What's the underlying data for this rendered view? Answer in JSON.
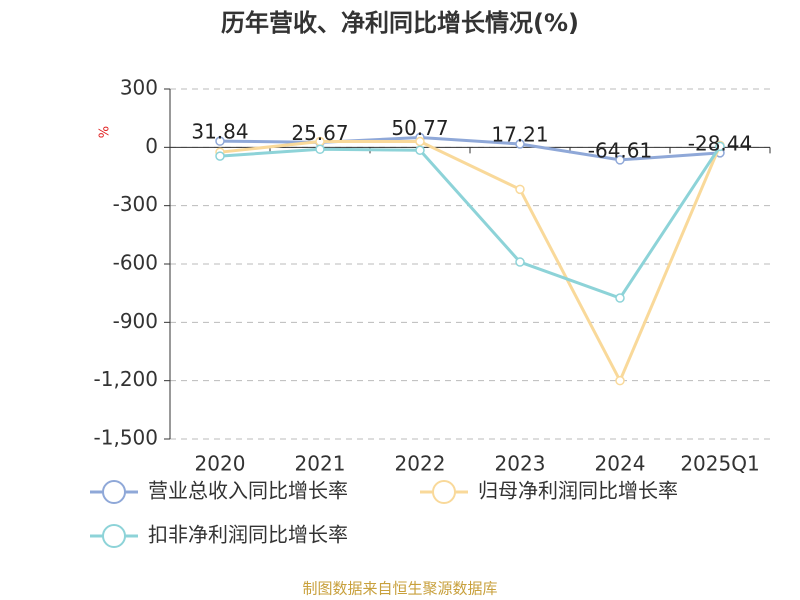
{
  "chart_data": {
    "type": "line",
    "title": "历年营收、净利同比增长情况(%)",
    "y_unit": "%",
    "categories": [
      "2020",
      "2021",
      "2022",
      "2023",
      "2024",
      "2025Q1"
    ],
    "series": [
      {
        "name": "营业总收入同比增长率",
        "color": "#8fa8d8",
        "values": [
          31.84,
          25.67,
          50.77,
          17.21,
          -64.61,
          -28.44
        ],
        "data_labels": true
      },
      {
        "name": "归母净利润同比增长率",
        "color": "#f9d99a",
        "values": [
          -25,
          30,
          30,
          -216,
          -1200,
          10
        ],
        "data_labels": false
      },
      {
        "name": "扣非净利润同比增长率",
        "color": "#8dd3d8",
        "values": [
          -45,
          -10,
          -15,
          -590,
          -775,
          5
        ],
        "data_labels": false
      }
    ],
    "ylim": [
      -1500,
      300
    ],
    "yticks": [
      300,
      0,
      -300,
      -600,
      -900,
      {
        "value": -1200,
        "label": "-1,200"
      },
      {
        "value": -1500,
        "label": "-1,500"
      }
    ],
    "grid": true,
    "source": "制图数据来自恒生聚源数据库"
  }
}
